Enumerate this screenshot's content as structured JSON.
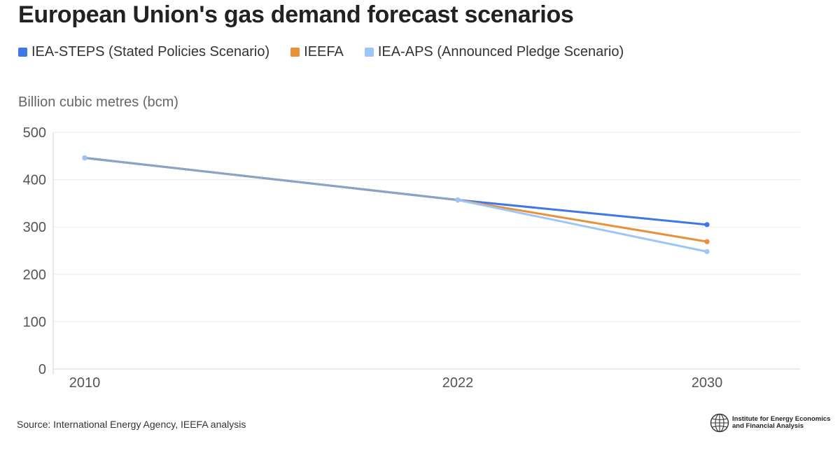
{
  "chart_data": {
    "type": "line",
    "title": "European Union's gas demand forecast scenarios",
    "ylabel": "Billion cubic metres (bcm)",
    "xlabel": "",
    "ylim": [
      0,
      500
    ],
    "yticks": [
      0,
      100,
      200,
      300,
      400,
      500
    ],
    "grid": true,
    "legend_position": "top",
    "x": [
      "2010",
      "2022",
      "2030"
    ],
    "series": [
      {
        "name": "IEA-STEPS (Stated Policies Scenario)",
        "color": "#3f76e8",
        "values": [
          446,
          357,
          305
        ]
      },
      {
        "name": "IEEFA",
        "color": "#e8913a",
        "values": [
          446,
          357,
          269
        ]
      },
      {
        "name": "IEA-APS (Announced Pledge Scenario)",
        "color": "#9cc6f7",
        "values": [
          446,
          357,
          248
        ]
      }
    ]
  },
  "footer": {
    "source": "Source: International Energy Agency, IEEFA analysis",
    "logo_line1": "Institute for Energy Economics",
    "logo_line2": "and Financial Analysis",
    "logo_icon": "globe-icon"
  }
}
